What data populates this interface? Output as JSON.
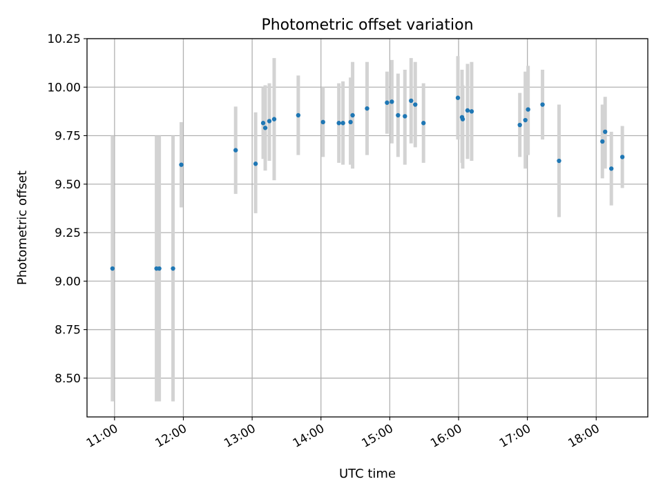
{
  "chart_data": {
    "type": "scatter",
    "title": "Photometric offset variation",
    "xlabel": "UTC time",
    "ylabel": "Photometric offset",
    "grid": true,
    "x_unit": "UTC hours",
    "xlim": [
      10.6,
      18.75
    ],
    "ylim": [
      8.3,
      10.25
    ],
    "x_ticks": [
      {
        "value": 11,
        "label": "11:00"
      },
      {
        "value": 12,
        "label": "12:00"
      },
      {
        "value": 13,
        "label": "13:00"
      },
      {
        "value": 14,
        "label": "14:00"
      },
      {
        "value": 15,
        "label": "15:00"
      },
      {
        "value": 16,
        "label": "16:00"
      },
      {
        "value": 17,
        "label": "17:00"
      },
      {
        "value": 18,
        "label": "18:00"
      }
    ],
    "y_ticks": [
      {
        "value": 8.5,
        "label": "8.50"
      },
      {
        "value": 8.75,
        "label": "8.75"
      },
      {
        "value": 9.0,
        "label": "9.00"
      },
      {
        "value": 9.25,
        "label": "9.25"
      },
      {
        "value": 9.5,
        "label": "9.50"
      },
      {
        "value": 9.75,
        "label": "9.75"
      },
      {
        "value": 10.0,
        "label": "10.00"
      },
      {
        "value": 10.25,
        "label": "10.25"
      }
    ],
    "point_color": "#1f77b4",
    "errorbar_color": "#d3d3d3",
    "series": [
      {
        "points": [
          {
            "x": 10.97,
            "y": 9.065,
            "lo": 8.38,
            "hi": 9.75
          },
          {
            "x": 11.61,
            "y": 9.065,
            "lo": 8.38,
            "hi": 9.75
          },
          {
            "x": 11.65,
            "y": 9.065,
            "lo": 8.38,
            "hi": 9.75
          },
          {
            "x": 11.85,
            "y": 9.065,
            "lo": 8.38,
            "hi": 9.75
          },
          {
            "x": 11.97,
            "y": 9.6,
            "lo": 9.38,
            "hi": 9.82
          },
          {
            "x": 12.76,
            "y": 9.675,
            "lo": 9.45,
            "hi": 9.9
          },
          {
            "x": 13.05,
            "y": 9.605,
            "lo": 9.35,
            "hi": 9.87
          },
          {
            "x": 13.16,
            "y": 9.815,
            "lo": 9.63,
            "hi": 10.0
          },
          {
            "x": 13.19,
            "y": 9.79,
            "lo": 9.57,
            "hi": 10.01
          },
          {
            "x": 13.25,
            "y": 9.825,
            "lo": 9.62,
            "hi": 10.02
          },
          {
            "x": 13.32,
            "y": 9.835,
            "lo": 9.52,
            "hi": 10.15
          },
          {
            "x": 13.67,
            "y": 9.855,
            "lo": 9.65,
            "hi": 10.06
          },
          {
            "x": 14.03,
            "y": 9.82,
            "lo": 9.64,
            "hi": 10.0
          },
          {
            "x": 14.26,
            "y": 9.815,
            "lo": 9.61,
            "hi": 10.02
          },
          {
            "x": 14.32,
            "y": 9.815,
            "lo": 9.6,
            "hi": 10.03
          },
          {
            "x": 14.43,
            "y": 9.82,
            "lo": 9.6,
            "hi": 10.05
          },
          {
            "x": 14.46,
            "y": 9.855,
            "lo": 9.58,
            "hi": 10.13
          },
          {
            "x": 14.67,
            "y": 9.89,
            "lo": 9.65,
            "hi": 10.13
          },
          {
            "x": 14.96,
            "y": 9.92,
            "lo": 9.76,
            "hi": 10.08
          },
          {
            "x": 15.03,
            "y": 9.925,
            "lo": 9.71,
            "hi": 10.14
          },
          {
            "x": 15.12,
            "y": 9.855,
            "lo": 9.64,
            "hi": 10.07
          },
          {
            "x": 15.22,
            "y": 9.85,
            "lo": 9.6,
            "hi": 10.09
          },
          {
            "x": 15.31,
            "y": 9.93,
            "lo": 9.71,
            "hi": 10.15
          },
          {
            "x": 15.37,
            "y": 9.91,
            "lo": 9.69,
            "hi": 10.13
          },
          {
            "x": 15.49,
            "y": 9.815,
            "lo": 9.61,
            "hi": 10.02
          },
          {
            "x": 15.99,
            "y": 9.945,
            "lo": 9.73,
            "hi": 10.16
          },
          {
            "x": 16.05,
            "y": 9.845,
            "lo": 9.61,
            "hi": 10.09
          },
          {
            "x": 16.06,
            "y": 9.835,
            "lo": 9.58,
            "hi": 10.01
          },
          {
            "x": 16.13,
            "y": 9.88,
            "lo": 9.63,
            "hi": 10.12
          },
          {
            "x": 16.19,
            "y": 9.875,
            "lo": 9.62,
            "hi": 10.13
          },
          {
            "x": 16.89,
            "y": 9.805,
            "lo": 9.64,
            "hi": 9.97
          },
          {
            "x": 16.97,
            "y": 9.83,
            "lo": 9.58,
            "hi": 10.08
          },
          {
            "x": 17.01,
            "y": 9.885,
            "lo": 9.65,
            "hi": 10.11
          },
          {
            "x": 17.22,
            "y": 9.91,
            "lo": 9.73,
            "hi": 10.09
          },
          {
            "x": 17.46,
            "y": 9.62,
            "lo": 9.33,
            "hi": 9.91
          },
          {
            "x": 18.09,
            "y": 9.72,
            "lo": 9.53,
            "hi": 9.91
          },
          {
            "x": 18.13,
            "y": 9.77,
            "lo": 9.58,
            "hi": 9.95
          },
          {
            "x": 18.22,
            "y": 9.58,
            "lo": 9.39,
            "hi": 9.77
          },
          {
            "x": 18.38,
            "y": 9.64,
            "lo": 9.48,
            "hi": 9.8
          }
        ]
      }
    ]
  }
}
